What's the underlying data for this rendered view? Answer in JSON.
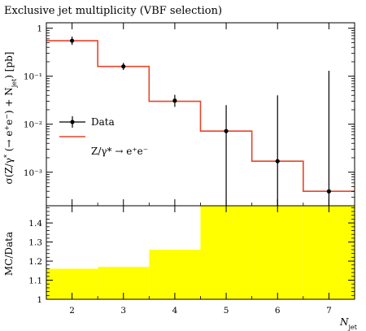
{
  "chart_data": [
    {
      "type": "line",
      "title": "Exclusive jet multiplicity (VBF selection)",
      "xlabel": "N_jet",
      "ylabel": "σ(Z/γ* (→ e⁺e⁻) + N_jet) [pb]",
      "yscale": "log",
      "xlim": [
        1.5,
        7.5
      ],
      "ylim": [
        0.0002,
        1.3
      ],
      "x_ticks": [
        "2",
        "3",
        "4",
        "5",
        "6",
        "7"
      ],
      "y_ticks": [
        {
          "value": 1,
          "label": "1"
        },
        {
          "value": 0.1,
          "label": "10⁻¹"
        },
        {
          "value": 0.01,
          "label": "10⁻²"
        },
        {
          "value": 0.001,
          "label": "10⁻³"
        }
      ],
      "legend": {
        "placement": "left",
        "entries": [
          "Data",
          "Z/γ* → e⁺e⁻"
        ]
      },
      "series": [
        {
          "name": "Data",
          "style": "points-with-errorbars",
          "color": "#000000",
          "x": [
            2,
            3,
            4,
            5,
            6,
            7
          ],
          "y": [
            0.55,
            0.16,
            0.031,
            0.0072,
            0.0017,
            0.0004
          ],
          "y_low": [
            0.45,
            0.135,
            0.023,
            0.0002,
            0.0002,
            0.0002
          ],
          "y_high": [
            0.67,
            0.19,
            0.041,
            0.025,
            0.04,
            0.13
          ]
        },
        {
          "name": "Z/γ* → e⁺e⁻",
          "style": "step",
          "color": "#e8442a",
          "bin_edges": [
            1.5,
            2.5,
            3.5,
            4.5,
            5.5,
            6.5,
            7.5
          ],
          "values": [
            0.55,
            0.16,
            0.03,
            0.0072,
            0.0017,
            0.0004
          ]
        }
      ]
    },
    {
      "type": "area",
      "ylabel": "MC/Data",
      "xlabel": "N_jet",
      "xlim": [
        1.5,
        7.5
      ],
      "ylim": [
        1.0,
        1.49
      ],
      "y_ticks": [
        "1",
        "1.1",
        "1.2",
        "1.3",
        "1.4"
      ],
      "x_ticks": [
        "2",
        "3",
        "4",
        "5",
        "6",
        "7"
      ],
      "series": [
        {
          "style": "step-band",
          "color": "#ffff00",
          "bin_edges": [
            1.5,
            2.5,
            3.5,
            4.5,
            5.5,
            6.5,
            7.5
          ],
          "values": [
            1.16,
            1.17,
            1.26,
            1.49,
            1.49,
            1.49
          ]
        }
      ]
    }
  ]
}
